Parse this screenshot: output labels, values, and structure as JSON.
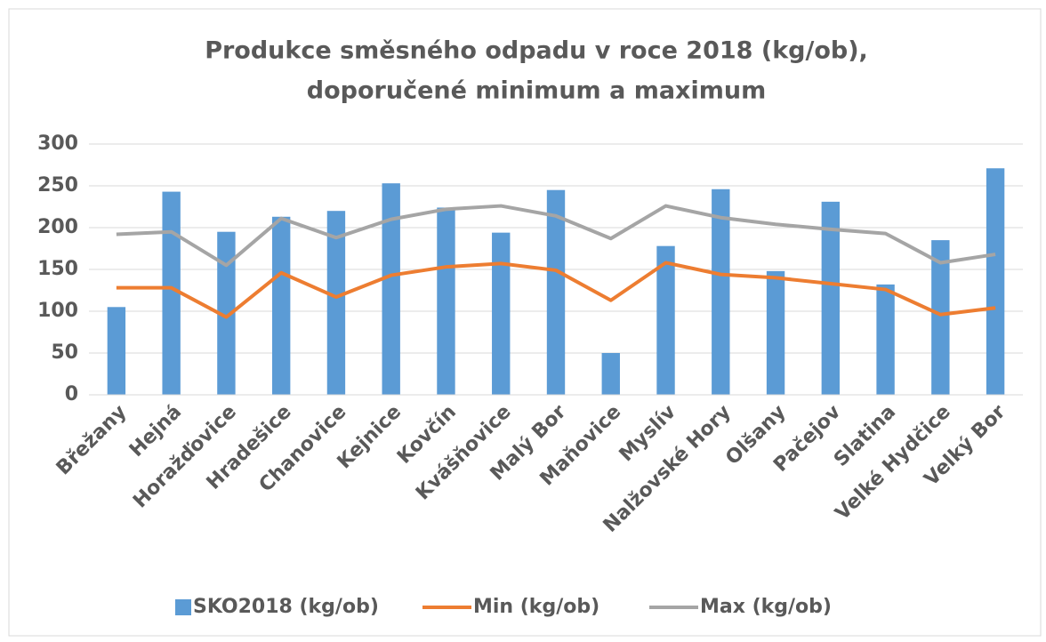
{
  "chart_data": {
    "type": "bar-line",
    "title": "Produkce směsného odpadu v roce 2018 (kg/ob),",
    "subtitle": "doporučené minimum a maximum",
    "categories": [
      "Břežany",
      "Hejná",
      "Horažďovice",
      "Hradešice",
      "Chanovice",
      "Kejnice",
      "Kovčín",
      "Kvášňovice",
      "Malý Bor",
      "Maňovice",
      "Myslív",
      "Nalžovské Hory",
      "Olšany",
      "Pačejov",
      "Slatina",
      "Velké Hydčice",
      "Velký Bor"
    ],
    "series": [
      {
        "name": "SKO2018 (kg/ob)",
        "type": "bar",
        "color": "#5b9bd5",
        "values": [
          105,
          243,
          195,
          213,
          220,
          253,
          224,
          194,
          245,
          50,
          178,
          246,
          148,
          231,
          132,
          185,
          271
        ]
      },
      {
        "name": "Min (kg/ob)",
        "type": "line",
        "color": "#ed7d31",
        "values": [
          128,
          128,
          93,
          146,
          117,
          143,
          153,
          157,
          149,
          113,
          158,
          144,
          140,
          133,
          126,
          96,
          104
        ]
      },
      {
        "name": "Max (kg/ob)",
        "type": "line",
        "color": "#a5a5a5",
        "values": [
          192,
          195,
          155,
          211,
          188,
          210,
          222,
          226,
          214,
          187,
          226,
          212,
          204,
          198,
          193,
          158,
          168
        ]
      }
    ],
    "ylim": [
      0,
      300
    ],
    "yticks": [
      0,
      50,
      100,
      150,
      200,
      250,
      300
    ],
    "grid": true,
    "legend": "bottom"
  }
}
